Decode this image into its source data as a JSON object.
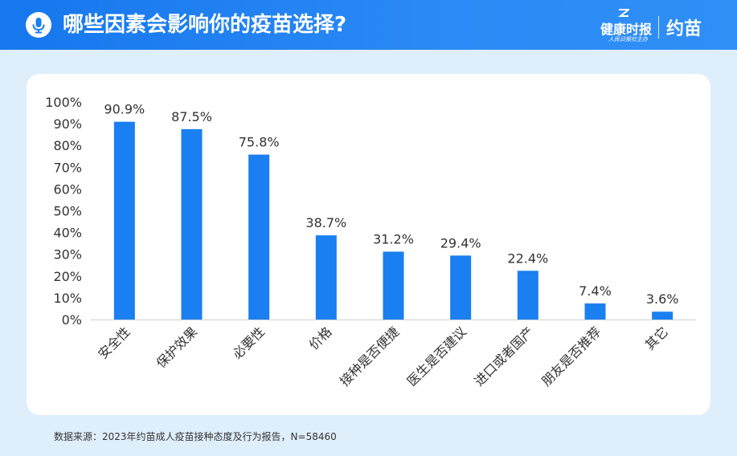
{
  "header": {
    "title": "哪些因素会影响你的疫苗选择?",
    "brand_name": "健康时报",
    "brand_sub": "人民日报社主办",
    "brand_app": "约苗",
    "icon": "microphone-icon",
    "background_color": "#1a7ff0"
  },
  "chart_data": {
    "type": "bar",
    "categories": [
      "安全性",
      "保护效果",
      "必要性",
      "价格",
      "接种是否便捷",
      "医生是否建议",
      "进口或者国产",
      "朋友是否推荐",
      "其它"
    ],
    "values": [
      90.9,
      87.5,
      75.8,
      38.7,
      31.2,
      29.4,
      22.4,
      7.4,
      3.6
    ],
    "value_labels": [
      "90.9%",
      "87.5%",
      "75.8%",
      "38.7%",
      "31.2%",
      "29.4%",
      "22.4%",
      "7.4%",
      "3.6%"
    ],
    "yticks": [
      "0%",
      "10%",
      "20%",
      "30%",
      "40%",
      "50%",
      "60%",
      "70%",
      "80%",
      "90%",
      "100%"
    ],
    "ylim": [
      0,
      100
    ],
    "bar_color": "#1a7ff0",
    "grid": false,
    "legend": false
  },
  "footer": {
    "source": "数据来源：2023年约苗成人疫苗接种态度及行为报告，N=58460"
  }
}
